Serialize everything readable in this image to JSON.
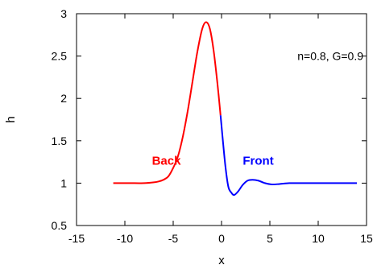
{
  "chart_data": {
    "type": "line",
    "title": "",
    "xlabel": "x",
    "ylabel": "h",
    "xlim": [
      -15,
      15
    ],
    "ylim": [
      0.5,
      3
    ],
    "x_ticks": [
      -15,
      -10,
      -5,
      0,
      5,
      10,
      15
    ],
    "x_tick_labels": [
      "-15",
      "-10",
      "-5",
      "0",
      "5",
      "10",
      "15"
    ],
    "y_ticks": [
      0.5,
      1,
      1.5,
      2,
      2.5,
      3
    ],
    "y_tick_labels": [
      "0.5",
      "1",
      "1.5",
      "2",
      "2.5",
      "3"
    ],
    "grid": false,
    "annotation": "n=0.8, G=0.9",
    "series": [
      {
        "name": "Back",
        "color": "#ff0000",
        "points": [
          [
            -11.2,
            1.0
          ],
          [
            -9.0,
            1.0
          ],
          [
            -8.0,
            1.0
          ],
          [
            -7.0,
            1.01
          ],
          [
            -6.5,
            1.02
          ],
          [
            -6.0,
            1.04
          ],
          [
            -5.5,
            1.08
          ],
          [
            -5.0,
            1.18
          ],
          [
            -4.5,
            1.32
          ],
          [
            -4.0,
            1.55
          ],
          [
            -3.5,
            1.85
          ],
          [
            -3.0,
            2.2
          ],
          [
            -2.5,
            2.55
          ],
          [
            -2.0,
            2.82
          ],
          [
            -1.6,
            2.9
          ],
          [
            -1.2,
            2.82
          ],
          [
            -0.8,
            2.55
          ],
          [
            -0.4,
            2.15
          ],
          [
            -0.1,
            1.8
          ]
        ]
      },
      {
        "name": "Front",
        "color": "#0000ff",
        "points": [
          [
            -0.1,
            1.8
          ],
          [
            0.1,
            1.55
          ],
          [
            0.4,
            1.2
          ],
          [
            0.7,
            0.96
          ],
          [
            1.0,
            0.89
          ],
          [
            1.3,
            0.86
          ],
          [
            1.7,
            0.9
          ],
          [
            2.2,
            0.98
          ],
          [
            2.7,
            1.03
          ],
          [
            3.2,
            1.04
          ],
          [
            3.8,
            1.03
          ],
          [
            4.5,
            1.0
          ],
          [
            5.2,
            0.985
          ],
          [
            6.0,
            0.99
          ],
          [
            7.0,
            1.0
          ],
          [
            8.0,
            1.0
          ],
          [
            10.0,
            1.0
          ],
          [
            12.0,
            1.0
          ],
          [
            14.0,
            1.0
          ]
        ]
      }
    ],
    "region_labels": [
      {
        "text": "Back",
        "color": "#ff0000",
        "x": -7.2,
        "y": 1.22
      },
      {
        "text": "Front",
        "color": "#0000ff",
        "x": 2.2,
        "y": 1.22
      }
    ]
  }
}
